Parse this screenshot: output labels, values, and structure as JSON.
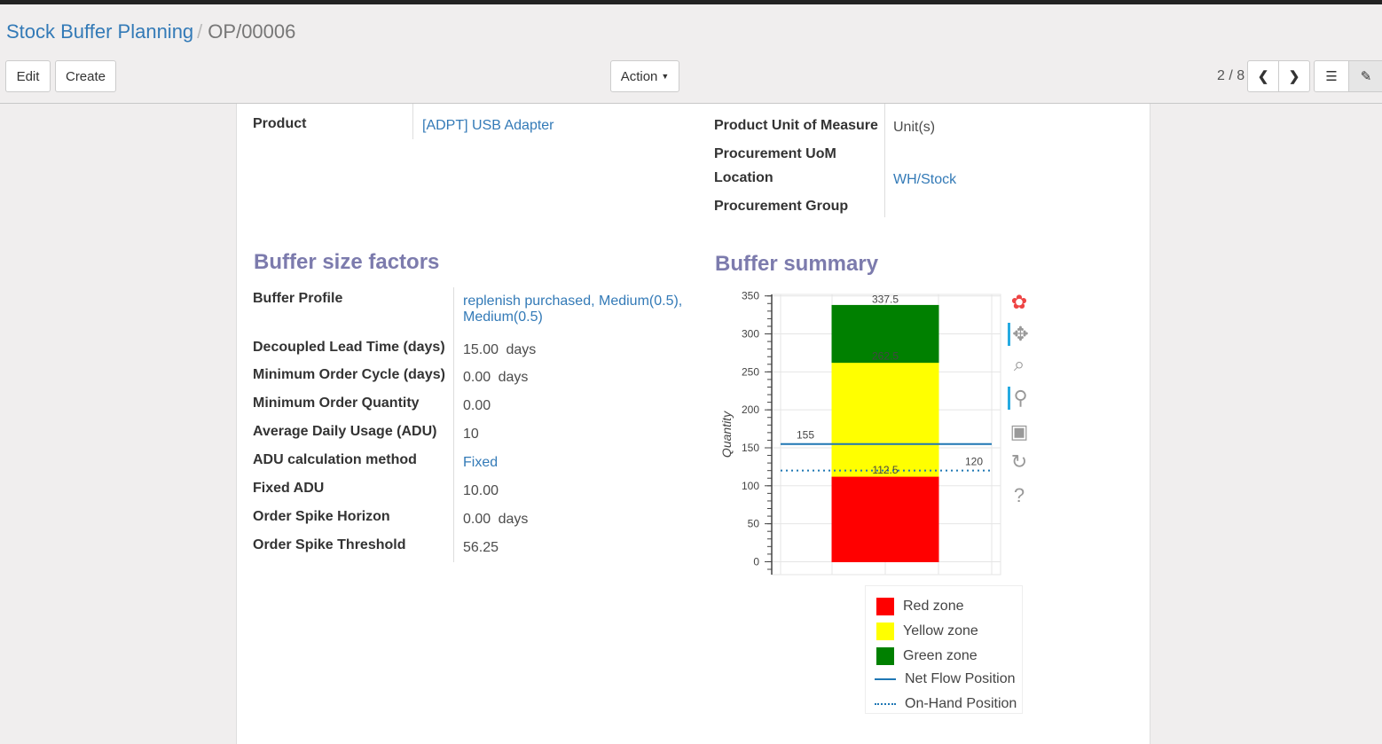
{
  "breadcrumb": {
    "parent": "Stock Buffer Planning",
    "current": "OP/00006"
  },
  "toolbar": {
    "edit": "Edit",
    "create": "Create",
    "action": "Action",
    "pager": "2 / 8"
  },
  "form": {
    "product_label": "Product",
    "product_value": "[ADPT] USB Adapter",
    "uom_label": "Product Unit of Measure",
    "uom_value": "Unit(s)",
    "proc_uom_label": "Procurement UoM",
    "location_label": "Location",
    "location_value": "WH/Stock",
    "proc_group_label": "Procurement Group"
  },
  "factors": {
    "title": "Buffer size factors",
    "rows": [
      {
        "label": "Buffer Profile",
        "value": "replenish purchased, Medium(0.5),",
        "value2": "Medium(0.5)",
        "link": true
      },
      {
        "label": "Decoupled Lead Time (days)",
        "value": "15.00",
        "unit": "days"
      },
      {
        "label": "Minimum Order Cycle (days)",
        "value": "0.00",
        "unit": "days"
      },
      {
        "label": "Minimum Order Quantity",
        "value": "0.00"
      },
      {
        "label": "Average Daily Usage (ADU)",
        "value": "10"
      },
      {
        "label": "ADU calculation method",
        "value": "Fixed",
        "link": true
      },
      {
        "label": "Fixed ADU",
        "value": "10.00"
      },
      {
        "label": "Order Spike Horizon",
        "value": "0.00",
        "unit": "days"
      },
      {
        "label": "Order Spike Threshold",
        "value": "56.25"
      }
    ]
  },
  "summary": {
    "title": "Buffer summary"
  },
  "chart_data": {
    "type": "bar",
    "stacked": true,
    "ylabel": "Quantity",
    "ylim": [
      -17,
      352
    ],
    "yticks": [
      0,
      50,
      100,
      150,
      200,
      250,
      300,
      350
    ],
    "grid": true,
    "segments": [
      {
        "name": "Red zone",
        "from": 0,
        "to": 112.5,
        "color": "#ff0000"
      },
      {
        "name": "Yellow zone",
        "from": 112.5,
        "to": 262.5,
        "color": "#ffff00"
      },
      {
        "name": "Green zone",
        "from": 262.5,
        "to": 337.5,
        "color": "#008000"
      }
    ],
    "bar_labels": [
      "112.5",
      "262.5",
      "337.5"
    ],
    "lines": [
      {
        "name": "Net Flow Position",
        "value": 155,
        "label": "155",
        "style": "solid",
        "color": "#1f77b4"
      },
      {
        "name": "On-Hand Position",
        "value": 120,
        "label": "120",
        "style": "dotted",
        "color": "#1f77b4"
      }
    ],
    "legend_placement": "bottom"
  }
}
